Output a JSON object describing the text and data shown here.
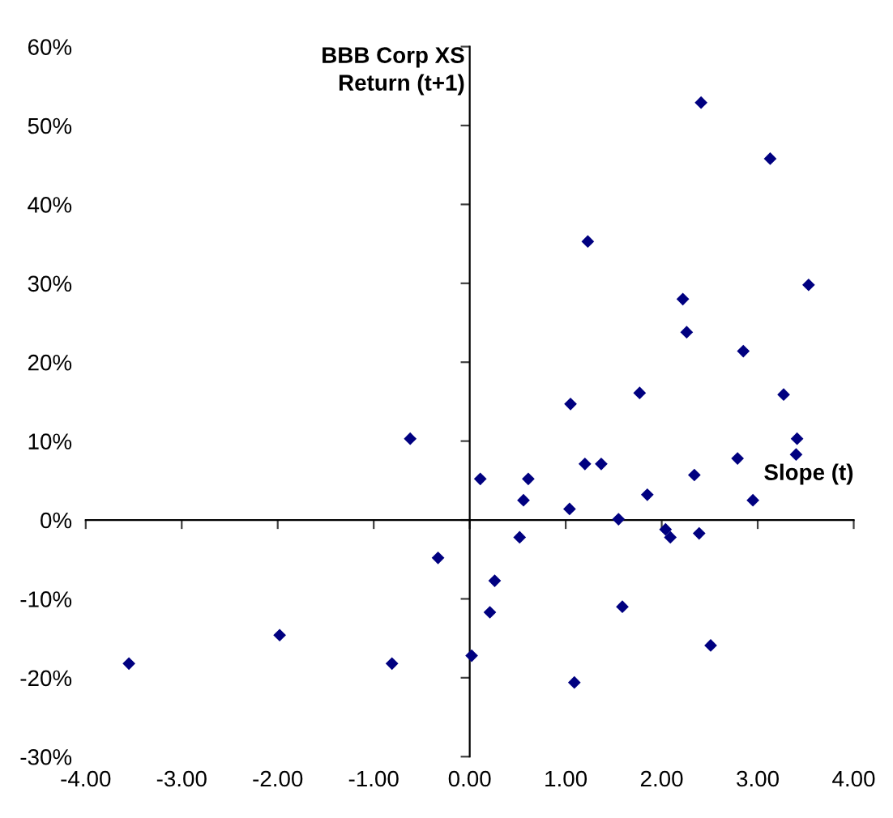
{
  "chart_data": {
    "type": "scatter",
    "xlabel": "Slope (t)",
    "ylabel": "BBB Corp XS\nReturn (t+1)",
    "marker": "diamond",
    "legend": false,
    "xlim": [
      -4,
      4
    ],
    "ylim": [
      -30,
      60
    ],
    "xticks": [
      {
        "value": -4,
        "label": "-4.00"
      },
      {
        "value": -3,
        "label": "-3.00"
      },
      {
        "value": -2,
        "label": "-2.00"
      },
      {
        "value": -1,
        "label": "-1.00"
      },
      {
        "value": 0,
        "label": "0.00"
      },
      {
        "value": 1,
        "label": "1.00"
      },
      {
        "value": 2,
        "label": "2.00"
      },
      {
        "value": 3,
        "label": "3.00"
      },
      {
        "value": 4,
        "label": "4.00"
      }
    ],
    "yticks": [
      {
        "value": -30,
        "label": "-30%"
      },
      {
        "value": -20,
        "label": "-20%"
      },
      {
        "value": -10,
        "label": "-10%"
      },
      {
        "value": 0,
        "label": "0%"
      },
      {
        "value": 10,
        "label": "10%"
      },
      {
        "value": 20,
        "label": "20%"
      },
      {
        "value": 30,
        "label": "30%"
      },
      {
        "value": 40,
        "label": "40%"
      },
      {
        "value": 50,
        "label": "50%"
      },
      {
        "value": 60,
        "label": "60%"
      }
    ],
    "series": [
      {
        "color": "#000080",
        "x": [
          -0.62,
          -0.33,
          -3.55,
          -1.98,
          -0.81,
          0.02,
          2.41,
          3.13,
          1.23,
          3.53,
          2.22,
          2.26,
          2.85,
          1.77,
          3.27,
          1.05,
          3.41,
          3.4,
          2.79,
          1.2,
          1.37,
          0.11,
          0.61,
          2.34,
          0.56,
          1.85,
          2.95,
          1.04,
          1.55,
          2.04,
          2.09,
          2.39,
          0.52,
          0.26,
          0.21,
          1.59,
          2.51,
          1.09
        ],
        "values": [
          10.3,
          -4.8,
          -18.2,
          -14.6,
          -18.2,
          -17.2,
          52.9,
          45.8,
          35.3,
          29.8,
          28.0,
          23.8,
          21.4,
          16.1,
          15.9,
          14.7,
          10.3,
          8.3,
          7.8,
          7.1,
          7.1,
          5.2,
          5.2,
          5.7,
          2.5,
          3.2,
          2.5,
          1.4,
          0.1,
          -1.2,
          -2.2,
          -1.7,
          -2.2,
          -7.7,
          -11.7,
          -11.0,
          -15.9,
          -20.6
        ]
      }
    ]
  }
}
